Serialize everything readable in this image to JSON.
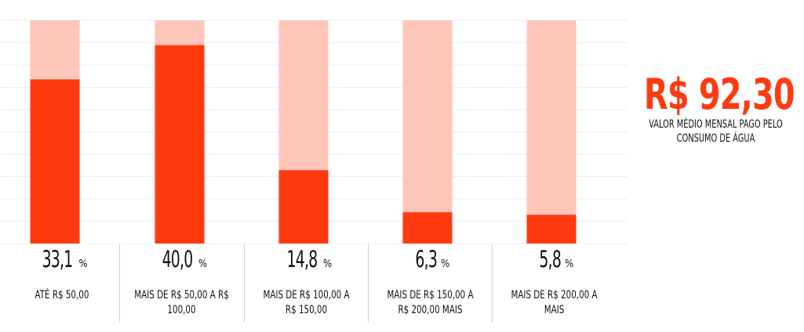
{
  "colors": {
    "bar_fill": "#ff3a10",
    "bar_track": "#ffc5b8",
    "highlight": "#ff3a10",
    "gridline": "#ededed",
    "text": "#111111"
  },
  "highlight": {
    "value": "R$ 92,30",
    "caption": "VALOR MÉDIO MENSAL PAGO PELO CONSUMO DE ÁGUA"
  },
  "chart_data": {
    "type": "bar",
    "categories": [
      "ATÉ R$ 50,00",
      "MAIS DE R$ 50,00 A R$ 100,00",
      "MAIS DE R$ 100,00 A R$ 150,00",
      "MAIS DE R$ 150,00 A R$ 200,00 MAIS",
      "MAIS DE R$ 200,00 A MAIS"
    ],
    "values": [
      33.1,
      40.0,
      14.8,
      6.3,
      5.8
    ],
    "value_labels": [
      "33,1",
      "40,0",
      "14,8",
      "6,3",
      "5,8"
    ],
    "unit": "%",
    "title": "",
    "xlabel": "",
    "ylabel": "",
    "ylim": [
      0,
      45
    ],
    "grid": true,
    "legend": "none"
  }
}
